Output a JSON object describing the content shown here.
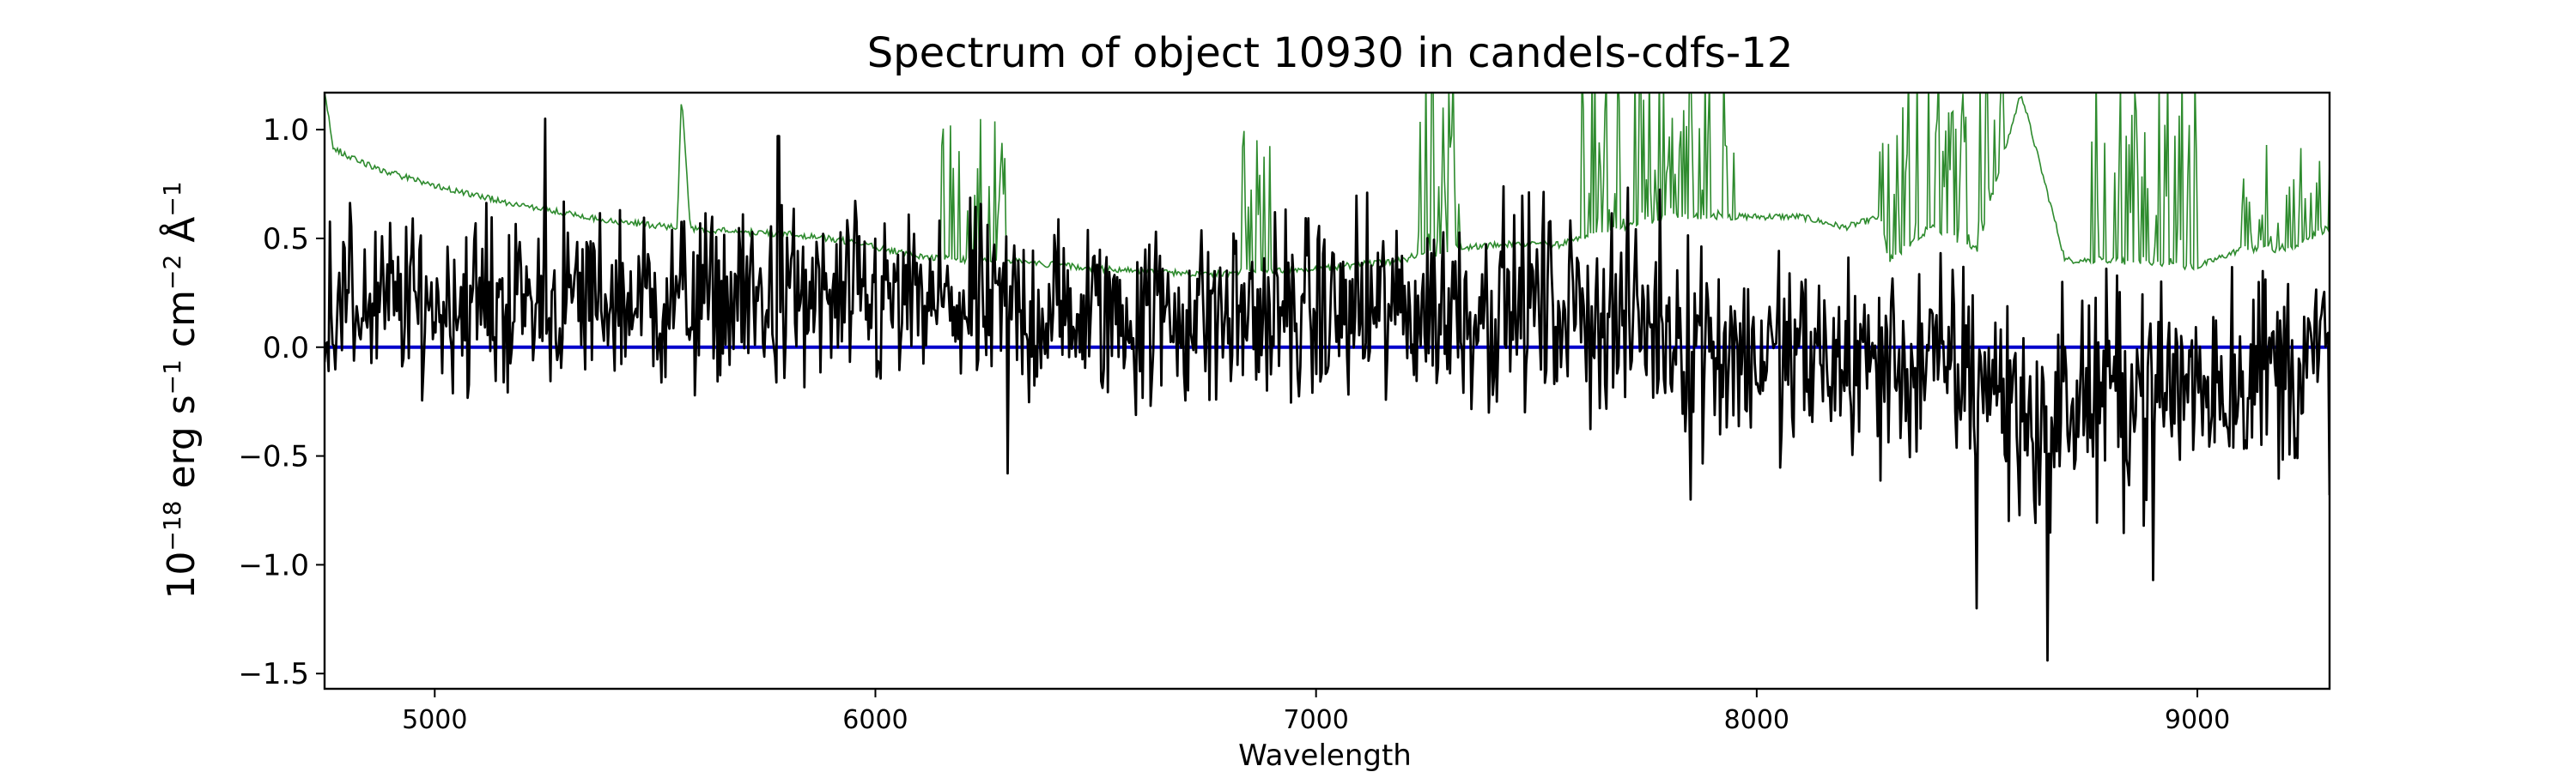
{
  "chart_data": {
    "type": "line",
    "title": "Spectrum of object 10930 in candels-cdfs-12",
    "xlabel": "Wavelength",
    "ylabel": {
      "base": "10",
      "exp_base": "−18",
      "unit1": " erg s",
      "exp_s": "−1",
      "unit2": " cm",
      "exp_cm": "−2",
      "unit3": " Å",
      "exp_A": "−1"
    },
    "xlim": [
      4750,
      9300
    ],
    "ylim": [
      -1.57,
      1.17
    ],
    "xticks": [
      5000,
      6000,
      7000,
      8000,
      9000
    ],
    "xtick_labels": [
      "5000",
      "6000",
      "7000",
      "8000",
      "9000"
    ],
    "yticks": [
      -1.5,
      -1.0,
      -0.5,
      0.0,
      0.5,
      1.0
    ],
    "ytick_labels": [
      "−1.5",
      "−1.0",
      "−0.5",
      "0.0",
      "0.5",
      "1.0"
    ],
    "grid": false,
    "colors": {
      "flux": "#000000",
      "error": "#2e8b2e",
      "zero": "#0000cc"
    },
    "zero_line": 0.0,
    "error_envelope": {
      "x": [
        4750,
        4770,
        4800,
        4900,
        5000,
        5200,
        5400,
        5550,
        5560,
        5580,
        5600,
        5800,
        5900,
        6000,
        6100,
        6200,
        6300,
        6400,
        6500,
        6600,
        6700,
        6800,
        6860,
        6900,
        7000,
        7100,
        7200,
        7250,
        7280,
        7300,
        7400,
        7500,
        7550,
        7600,
        7700,
        7800,
        7900,
        8000,
        8100,
        8200,
        8280,
        8300,
        8400,
        8500,
        8600,
        8700,
        8800,
        8900,
        9000,
        9100,
        9200,
        9300
      ],
      "y": [
        1.17,
        0.92,
        0.88,
        0.8,
        0.74,
        0.65,
        0.58,
        0.55,
        1.17,
        0.55,
        0.54,
        0.52,
        0.5,
        0.46,
        0.42,
        0.4,
        0.4,
        0.38,
        0.36,
        0.35,
        0.34,
        0.34,
        0.36,
        0.35,
        0.36,
        0.38,
        0.4,
        0.45,
        0.42,
        0.45,
        0.47,
        0.48,
        0.47,
        0.5,
        0.55,
        0.6,
        0.6,
        0.6,
        0.6,
        0.55,
        0.6,
        0.4,
        0.55,
        0.45,
        1.17,
        0.4,
        0.4,
        0.38,
        0.37,
        0.45,
        0.45,
        0.55
      ]
    },
    "error_spikes": [
      {
        "from": 6150,
        "to": 6300,
        "peak": 0.75
      },
      {
        "from": 6820,
        "to": 6900,
        "peak": 0.7
      },
      {
        "from": 7230,
        "to": 7340,
        "peak": 1.05
      },
      {
        "from": 7600,
        "to": 7720,
        "peak": 1.1
      },
      {
        "from": 7720,
        "to": 7950,
        "peak": 1.17
      },
      {
        "from": 8270,
        "to": 8560,
        "peak": 1.17
      },
      {
        "from": 8760,
        "to": 9000,
        "peak": 1.17
      },
      {
        "from": 9100,
        "to": 9300,
        "peak": 0.65
      }
    ],
    "flux_trend": {
      "x": [
        4750,
        5000,
        5500,
        6000,
        6500,
        7000,
        7500,
        7800,
        8000,
        8500,
        8650,
        8700,
        9000,
        9300
      ],
      "y": [
        0.2,
        0.2,
        0.22,
        0.2,
        0.15,
        0.15,
        0.2,
        0.1,
        -0.05,
        -0.1,
        -0.4,
        -0.25,
        -0.15,
        -0.05
      ]
    },
    "flux_noise": {
      "amplitude_blue": 0.35,
      "amplitude_red": 0.45,
      "points": 1500
    },
    "flux_features": [
      {
        "x": 5250,
        "y": 1.05
      },
      {
        "x": 5780,
        "y": 0.97
      },
      {
        "x": 6300,
        "y": -0.58
      },
      {
        "x": 7850,
        "y": -0.7
      },
      {
        "x": 8500,
        "y": -1.2
      },
      {
        "x": 8660,
        "y": -1.44
      },
      {
        "x": 8900,
        "y": -1.07
      },
      {
        "x": 9300,
        "y": -0.68
      }
    ]
  }
}
